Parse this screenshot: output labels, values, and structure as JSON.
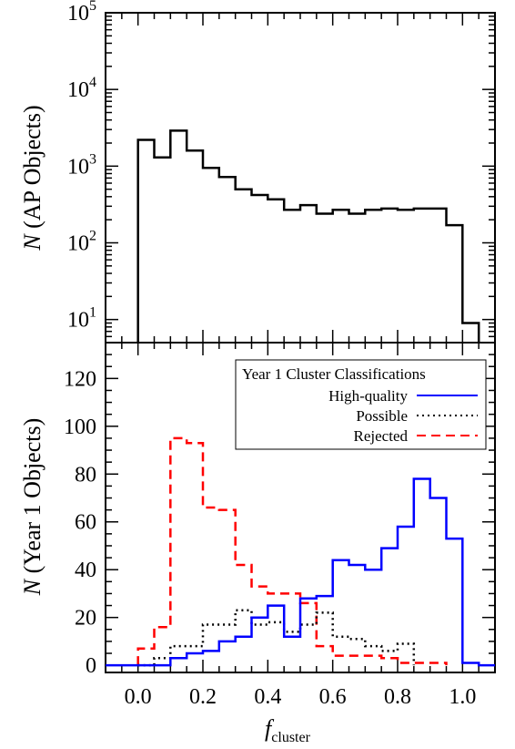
{
  "chart_data": [
    {
      "type": "step",
      "title": "",
      "ylabel_symbol": "N",
      "ylabel": "(AP Objects)",
      "xlim": [
        -0.1,
        1.1
      ],
      "ylim": [
        5,
        100000
      ],
      "yscale": "log",
      "ytick_exponents": [
        "0",
        "1",
        "2",
        "3",
        "4",
        "5"
      ],
      "ytick_base": "10",
      "series": [
        {
          "color": "#000000",
          "style": "solid",
          "x_edges": [
            0.0,
            0.05,
            0.1,
            0.15,
            0.2,
            0.25,
            0.3,
            0.35,
            0.4,
            0.45,
            0.5,
            0.55,
            0.6,
            0.65,
            0.7,
            0.75,
            0.8,
            0.85,
            0.9,
            0.95,
            1.0,
            1.05
          ],
          "values": [
            2200,
            1300,
            2900,
            1600,
            950,
            720,
            500,
            420,
            370,
            270,
            310,
            240,
            270,
            240,
            270,
            280,
            270,
            280,
            280,
            170,
            9
          ]
        }
      ]
    },
    {
      "type": "step",
      "title": "",
      "ylabel_symbol": "N",
      "ylabel": "(Year 1 Objects)",
      "xlabel_symbol": "f",
      "xlabel_sub": "cluster",
      "xlim": [
        -0.1,
        1.1
      ],
      "ylim": [
        -3,
        135
      ],
      "xticks": [
        "0.0",
        "0.2",
        "0.4",
        "0.6",
        "0.8",
        "1.0"
      ],
      "yticks": [
        "0",
        "20",
        "40",
        "60",
        "80",
        "100",
        "120"
      ],
      "legend": {
        "title": "Year 1 Cluster Classifications",
        "position": "top-right"
      },
      "series": [
        {
          "name": "High-quality",
          "color": "#0000ff",
          "style": "solid",
          "x_edges": [
            -0.1,
            0.05,
            0.1,
            0.15,
            0.2,
            0.25,
            0.3,
            0.35,
            0.4,
            0.45,
            0.5,
            0.55,
            0.6,
            0.65,
            0.7,
            0.75,
            0.8,
            0.85,
            0.9,
            0.95,
            1.0,
            1.05,
            1.1
          ],
          "values": [
            0,
            0,
            3,
            5,
            6,
            10,
            12,
            20,
            25,
            12,
            28,
            29,
            44,
            42,
            40,
            49,
            58,
            78,
            70,
            53,
            1,
            0
          ]
        },
        {
          "name": "Possible",
          "color": "#000000",
          "style": "dotted",
          "x_edges": [
            0.0,
            0.05,
            0.1,
            0.15,
            0.2,
            0.25,
            0.3,
            0.35,
            0.4,
            0.45,
            0.5,
            0.55,
            0.6,
            0.65,
            0.7,
            0.75,
            0.8,
            0.85
          ],
          "values": [
            0,
            3,
            8,
            8,
            17,
            17,
            23,
            17,
            18,
            14,
            17,
            22,
            12,
            11,
            8,
            6,
            9
          ]
        },
        {
          "name": "Rejected",
          "color": "#ff0000",
          "style": "dashed",
          "x_edges": [
            0.0,
            0.05,
            0.1,
            0.15,
            0.2,
            0.25,
            0.3,
            0.35,
            0.4,
            0.45,
            0.5,
            0.55,
            0.6,
            0.65,
            0.7,
            0.75,
            0.8,
            0.85,
            0.9,
            0.95
          ],
          "values": [
            7,
            16,
            95,
            93,
            66,
            65,
            42,
            33,
            30,
            30,
            26,
            8,
            4,
            4,
            4,
            3,
            1,
            1,
            1
          ]
        }
      ]
    }
  ]
}
